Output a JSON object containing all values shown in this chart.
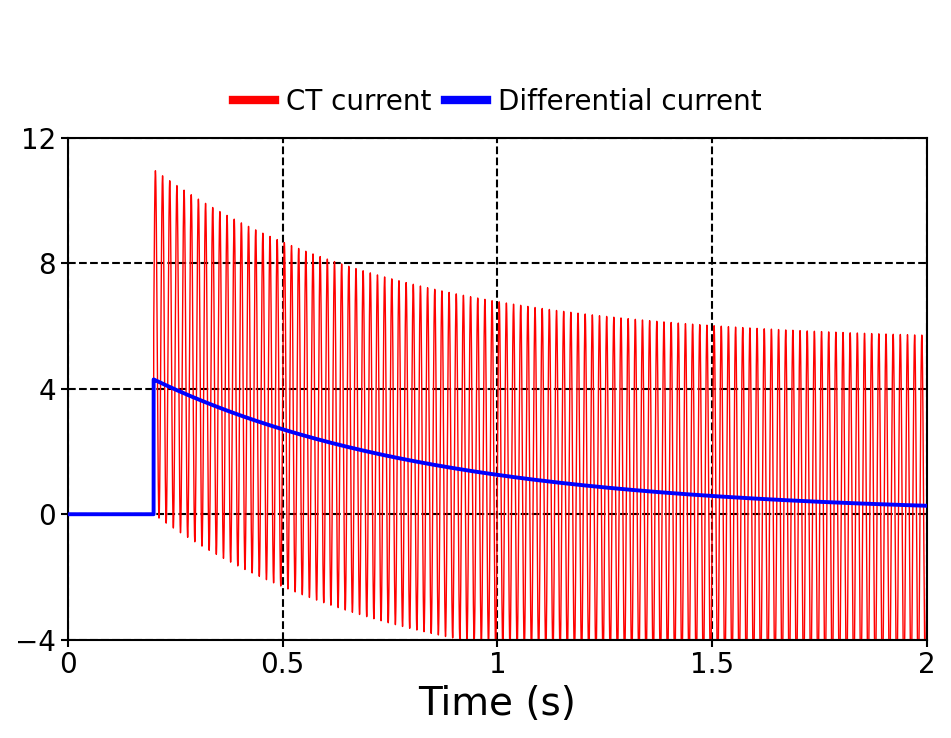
{
  "title": "",
  "xlabel": "Time (s)",
  "ylabel": "",
  "xlim": [
    0,
    2
  ],
  "ylim": [
    -4,
    12
  ],
  "xticks": [
    0,
    0.5,
    1.0,
    1.5,
    2.0
  ],
  "xtick_labels": [
    "0",
    "0.5",
    "1",
    "1.5",
    "2"
  ],
  "yticks": [
    -4,
    0,
    4,
    8,
    12
  ],
  "ct_color": "#ff0000",
  "diff_color": "#0000ff",
  "ct_label": "CT current",
  "diff_label": "Differential current",
  "inrush_start": 0.2,
  "dc_peak": 5.5,
  "ac_amplitude": 5.5,
  "dc_tau": 0.55,
  "freq": 60,
  "diff_peak": 4.3,
  "diff_tau": 0.65,
  "background_color": "#ffffff",
  "grid_color": "#000000",
  "legend_fontsize": 20,
  "xlabel_fontsize": 28,
  "tick_fontsize": 20,
  "linewidth_ct": 1.0,
  "linewidth_diff": 2.8,
  "grid_linewidth": 1.5,
  "grid_linestyle": "--"
}
